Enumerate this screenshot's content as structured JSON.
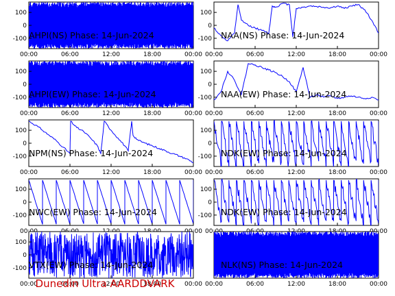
{
  "footer_label": "Dunedin Ultra AARDDVARK",
  "trace_color": "#0000ff",
  "chart_data": [
    {
      "type": "line",
      "title": "AHPI(NS) Phase: 14-Jun-2024",
      "x_ticks": [
        "00:00",
        "06:00",
        "12:00",
        "18:00",
        "00:00"
      ],
      "y_ticks": [
        "100",
        "0",
        "-100"
      ],
      "ylim": [
        -180,
        180
      ],
      "xlim_hours": [
        0,
        24
      ],
      "pattern": "wrap",
      "seed": 11,
      "series": [
        {
          "x": [
            0,
            24
          ],
          "y": [
            0,
            0
          ]
        }
      ]
    },
    {
      "type": "line",
      "title": "NAA(NS) Phase: 14-Jun-2024",
      "x_ticks": [
        "00:00",
        "06:00",
        "12:00",
        "18:00",
        "00:00"
      ],
      "y_ticks": [
        "100",
        "0",
        "-100"
      ],
      "ylim": [
        -180,
        180
      ],
      "xlim_hours": [
        0,
        24
      ],
      "pattern": "drift",
      "seed": 12,
      "series": [
        {
          "x": [
            0,
            1,
            2,
            3,
            3.5,
            4,
            5,
            6,
            7,
            8,
            8.5,
            9,
            10,
            11,
            11.5,
            12,
            13,
            14,
            15,
            16,
            17,
            18,
            19,
            20,
            21,
            22,
            23,
            24
          ],
          "y": [
            -20,
            -80,
            -120,
            -60,
            160,
            40,
            0,
            -20,
            -40,
            -60,
            150,
            140,
            170,
            160,
            -90,
            130,
            140,
            150,
            145,
            140,
            135,
            150,
            130,
            150,
            160,
            120,
            40,
            -60
          ]
        }
      ]
    },
    {
      "type": "line",
      "title": "AHPI(EW) Phase: 14-Jun-2024",
      "x_ticks": [
        "00:00",
        "06:00",
        "12:00",
        "18:00",
        "00:00"
      ],
      "y_ticks": [
        "100",
        "0",
        "-100"
      ],
      "ylim": [
        -180,
        180
      ],
      "xlim_hours": [
        0,
        24
      ],
      "pattern": "wrap",
      "seed": 21,
      "series": [
        {
          "x": [
            0,
            24
          ],
          "y": [
            0,
            0
          ]
        }
      ]
    },
    {
      "type": "line",
      "title": "NAA(EW) Phase: 14-Jun-2024",
      "x_ticks": [
        "00:00",
        "06:00",
        "12:00",
        "18:00",
        "00:00"
      ],
      "y_ticks": [
        "100",
        "0",
        "-100"
      ],
      "ylim": [
        -180,
        180
      ],
      "xlim_hours": [
        0,
        24
      ],
      "pattern": "drift",
      "seed": 22,
      "series": [
        {
          "x": [
            0,
            1,
            2,
            3,
            4,
            5,
            6,
            7,
            8,
            9,
            10,
            11,
            12,
            13,
            14,
            15,
            16,
            17,
            18,
            19,
            20,
            21,
            22,
            23,
            24
          ],
          "y": [
            -120,
            -60,
            100,
            30,
            -80,
            160,
            150,
            130,
            110,
            90,
            60,
            20,
            -60,
            130,
            -100,
            -80,
            -100,
            -90,
            -110,
            -100,
            -90,
            -100,
            -110,
            -100,
            -120
          ]
        }
      ]
    },
    {
      "type": "line",
      "title": "NPM(NS) Phase: 14-Jun-2024",
      "x_ticks": [
        "00:00",
        "06:00",
        "12:00",
        "18:00",
        "00:00"
      ],
      "y_ticks": [
        "100",
        "0",
        "-100"
      ],
      "ylim": [
        -180,
        180
      ],
      "xlim_hours": [
        0,
        24
      ],
      "pattern": "drift",
      "seed": 31,
      "series": [
        {
          "x": [
            0,
            1,
            2,
            3,
            4,
            5,
            6,
            6.1,
            7,
            8,
            9,
            10,
            10.5,
            11,
            12,
            13,
            14,
            14.5,
            15,
            15.2,
            16,
            17,
            18,
            19,
            20,
            21,
            22,
            23,
            24
          ],
          "y": [
            170,
            140,
            100,
            60,
            20,
            -30,
            -80,
            170,
            120,
            90,
            40,
            -20,
            -80,
            170,
            100,
            40,
            -20,
            -60,
            170,
            60,
            20,
            0,
            -20,
            -40,
            -60,
            -80,
            -100,
            -120,
            -150
          ]
        }
      ]
    },
    {
      "type": "line",
      "title": "NDK(EW) Phase: 14-Jun-2024",
      "x_ticks": [
        "00:00",
        "06:00",
        "12:00",
        "18:00",
        "00:00"
      ],
      "y_ticks": [
        "100",
        "0",
        "-100"
      ],
      "ylim": [
        -180,
        180
      ],
      "xlim_hours": [
        0,
        24
      ],
      "pattern": "saw",
      "seed": 32,
      "series": [
        {
          "x": [
            0,
            24
          ],
          "y": [
            0,
            0
          ]
        }
      ]
    },
    {
      "type": "line",
      "title": "NWC(EW) Phase: 14-Jun-2024",
      "x_ticks": [
        "00:00",
        "06:00",
        "12:00",
        "18:00",
        "00:00"
      ],
      "y_ticks": [
        "100",
        "0",
        "-100"
      ],
      "ylim": [
        -180,
        180
      ],
      "xlim_hours": [
        0,
        24
      ],
      "pattern": "sawclean",
      "seed": 41,
      "series": [
        {
          "x": [
            0,
            24
          ],
          "y": [
            0,
            0
          ]
        }
      ]
    },
    {
      "type": "line",
      "title": "NDK(EW) Phase: 14-Jun-2024",
      "x_ticks": [
        "00:00",
        "06:00",
        "12:00",
        "18:00",
        "00:00"
      ],
      "y_ticks": [
        "100",
        "0",
        "-100"
      ],
      "ylim": [
        -180,
        180
      ],
      "xlim_hours": [
        0,
        24
      ],
      "pattern": "saw",
      "seed": 42,
      "series": [
        {
          "x": [
            0,
            24
          ],
          "y": [
            0,
            0
          ]
        }
      ]
    },
    {
      "type": "line",
      "title": "VTX(EW) Phase: 14-Jun-2024",
      "x_ticks": [
        "00:00",
        "06:00",
        "12:00",
        "18:00",
        "00:00"
      ],
      "y_ticks": [
        "100",
        "0",
        "-100"
      ],
      "ylim": [
        -180,
        180
      ],
      "xlim_hours": [
        0,
        24
      ],
      "pattern": "noise",
      "seed": 51,
      "series": [
        {
          "x": [
            0,
            24
          ],
          "y": [
            0,
            0
          ]
        }
      ]
    },
    {
      "type": "line",
      "title": "NLK(NS) Phase: 14-Jun-2024",
      "x_ticks": [
        "00:00",
        "06:00",
        "12:00",
        "18:00",
        "00:00"
      ],
      "y_ticks": [],
      "ylim": [
        -180,
        180
      ],
      "xlim_hours": [
        0,
        24
      ],
      "pattern": "wrap",
      "seed": 52,
      "series": [
        {
          "x": [
            0,
            24
          ],
          "y": [
            0,
            0
          ]
        }
      ]
    }
  ]
}
